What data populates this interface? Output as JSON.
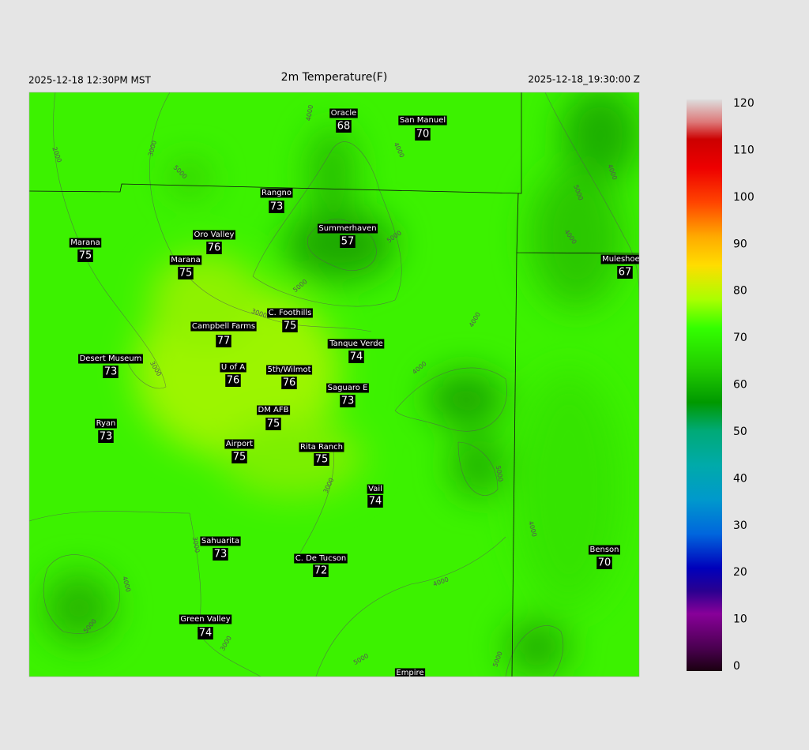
{
  "header": {
    "left": "2025-12-18 12:30PM MST",
    "title": "2m Temperature(F)",
    "right": "2025-12-18_19:30:00 Z"
  },
  "stations": [
    {
      "name": "Oracle",
      "value": 68
    },
    {
      "name": "San Manuel",
      "value": 70
    },
    {
      "name": "Rangno",
      "value": 73
    },
    {
      "name": "Summerhaven",
      "value": 57
    },
    {
      "name": "Marana",
      "value": 75
    },
    {
      "name": "Oro Valley",
      "value": 76
    },
    {
      "name": "Marana",
      "value": 75
    },
    {
      "name": "Muleshoe R",
      "value": 67
    },
    {
      "name": "C. Foothills",
      "value": 75
    },
    {
      "name": "Campbell Farms",
      "value": 77
    },
    {
      "name": "Tanque Verde",
      "value": 74
    },
    {
      "name": "Desert Museum",
      "value": 73
    },
    {
      "name": "U of A",
      "value": 76
    },
    {
      "name": "5th/Wilmot",
      "value": 76
    },
    {
      "name": "Saguaro E",
      "value": 73
    },
    {
      "name": "DM AFB",
      "value": 75
    },
    {
      "name": "Ryan",
      "value": 73
    },
    {
      "name": "Airport",
      "value": 75
    },
    {
      "name": "Rita Ranch",
      "value": 75
    },
    {
      "name": "Vail",
      "value": 74
    },
    {
      "name": "Sahuarita",
      "value": 73
    },
    {
      "name": "C. De Tucson",
      "value": 72
    },
    {
      "name": "Benson",
      "value": 70
    },
    {
      "name": "Green Valley",
      "value": 74
    },
    {
      "name": "Empire"
    }
  ],
  "contour_labels": [
    2000,
    3000,
    5000,
    4000,
    4000,
    5000,
    3000,
    3000,
    4000,
    4000,
    5000,
    4000,
    3000,
    3000,
    4000,
    5000,
    4000,
    3000,
    5000,
    5000,
    4000,
    5000,
    4000,
    5000
  ],
  "colorbar": {
    "lim": [
      0,
      120
    ],
    "ticks": [
      0,
      10,
      20,
      30,
      40,
      50,
      60,
      70,
      80,
      90,
      100,
      110,
      120
    ]
  }
}
